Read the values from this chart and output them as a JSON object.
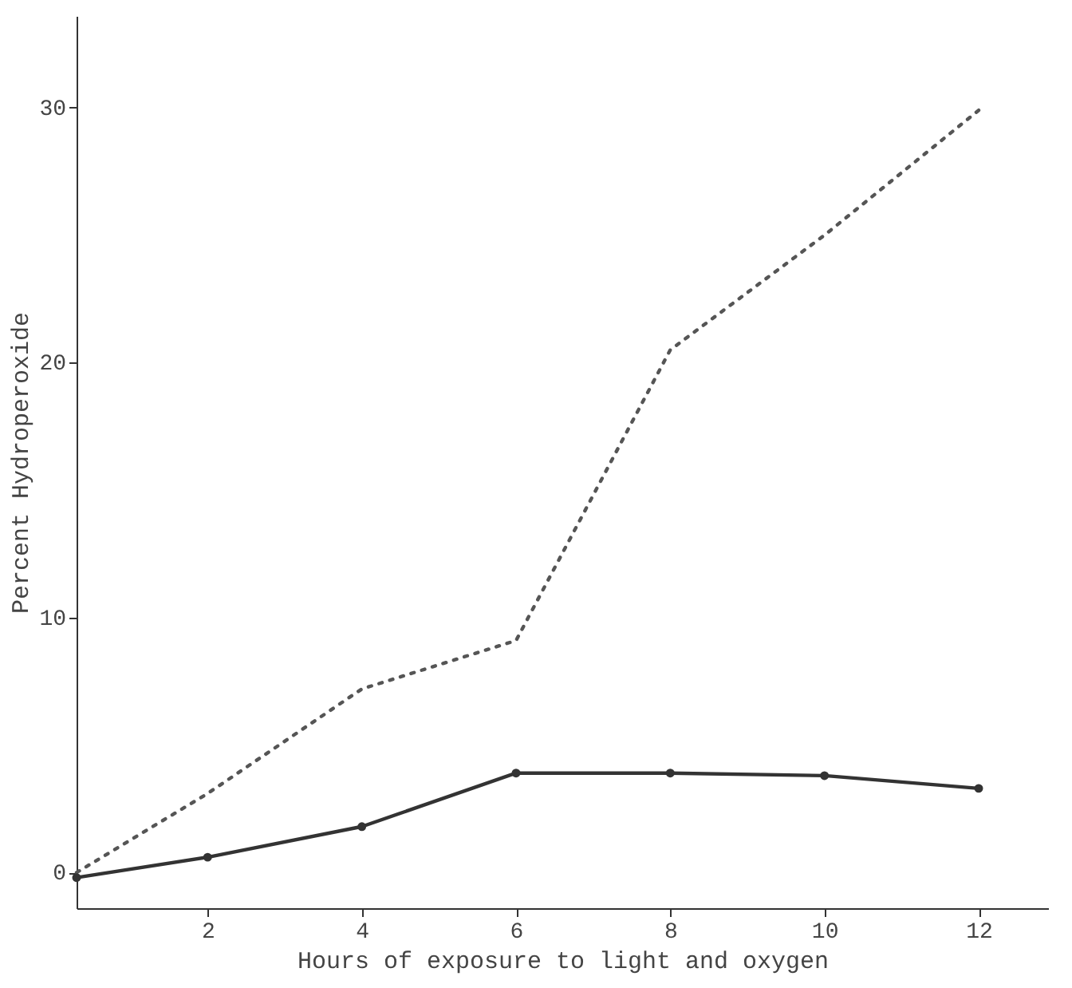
{
  "chart_data": {
    "type": "line",
    "xlabel": "Hours of exposure to light and oxygen",
    "ylabel": "Percent Hydroperoxide",
    "xlim": [
      0.3,
      12.9
    ],
    "ylim": [
      -1.4,
      33.6
    ],
    "xticks": [
      2,
      4,
      6,
      8,
      10,
      12
    ],
    "yticks": [
      0,
      10,
      20,
      30
    ],
    "grid": false,
    "series": [
      {
        "color": "#555555",
        "line_style": "dotted",
        "marker": "none",
        "x": [
          0.3,
          2,
          4,
          6,
          8,
          10,
          12
        ],
        "values": [
          0,
          3.1,
          7.2,
          9.1,
          20.5,
          25.0,
          29.9
        ]
      },
      {
        "color": "#333333",
        "line_style": "solid",
        "marker": "circle",
        "x": [
          0.3,
          2,
          4,
          6,
          8,
          10,
          12
        ],
        "values": [
          -0.2,
          0.6,
          1.8,
          3.9,
          3.9,
          3.8,
          3.3
        ]
      }
    ]
  }
}
